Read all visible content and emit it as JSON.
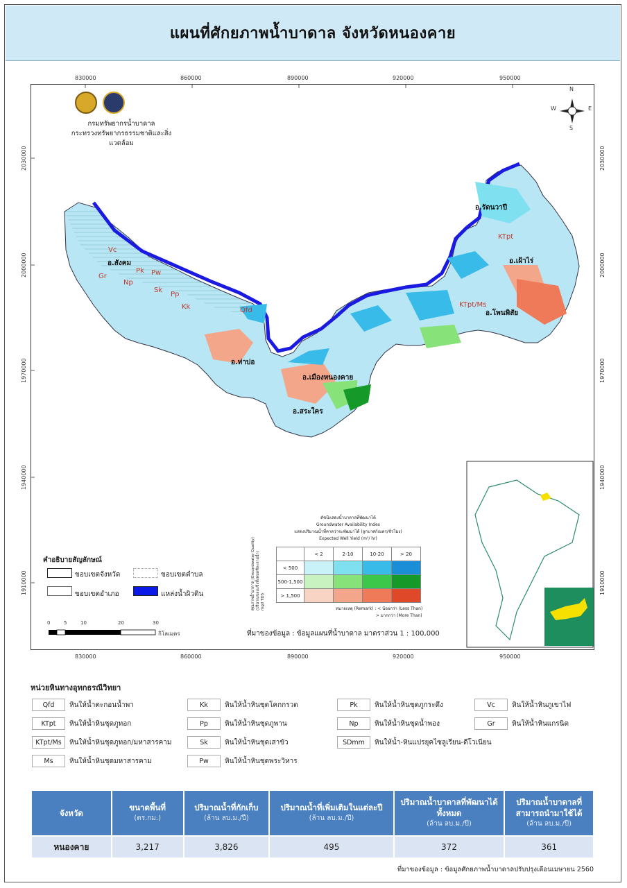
{
  "title": "แผนที่ศักยภาพน้ำบาดาล จังหวัดหนองคาย",
  "grid": {
    "x_ticks": [
      "830000",
      "860000",
      "890000",
      "920000",
      "950000"
    ],
    "y_ticks": [
      "2030000",
      "2000000",
      "1970000",
      "1940000",
      "1910000"
    ]
  },
  "agency": {
    "line1": "กรมทรัพยากรน้ำบาดาล",
    "line2": "กระทรวงทรัพยากรธรรมชาติและสิ่งแวดล้อม"
  },
  "north_arrow": {
    "n": "N",
    "s": "S",
    "e": "E",
    "w": "W"
  },
  "districts": [
    {
      "name": "อ.สังคม"
    },
    {
      "name": "อ.ท่าบ่อ"
    },
    {
      "name": "อ.เมืองหนองคาย"
    },
    {
      "name": "อ.สระใคร"
    },
    {
      "name": "อ.รัตนวาปี"
    },
    {
      "name": "อ.เฝ้าไร่"
    },
    {
      "name": "อ.โพนพิสัย"
    }
  ],
  "geology_labels": [
    "Vc",
    "Gr",
    "Pk",
    "Pw",
    "Np",
    "Sk",
    "Pp",
    "Kk",
    "Qfd",
    "KTpt",
    "KTpt/Ms"
  ],
  "symbol_legend": {
    "title": "คำอธิบายสัญลักษณ์",
    "items": [
      {
        "label": "ขอบเขตจังหวัด"
      },
      {
        "label": "ขอบเขตตำบล"
      },
      {
        "label": "ขอบเขตอำเภอ"
      },
      {
        "label": "แหล่งน้ำผิวดิน"
      }
    ]
  },
  "scale_bar": {
    "ticks": [
      "0",
      "5",
      "10",
      "20",
      "30"
    ],
    "unit": "กิโลเมตร"
  },
  "gw_index": {
    "title_th": "ดัชนีแสดงน้ำบาดาลที่พัฒนาได้",
    "title_en": "Groundwater Availability Index",
    "subtitle": "แสดงปริมาณน้ำที่คาดว่าจะพัฒนาได้ (ลูกบาศก์เมตร/ชั่วโมง)",
    "yield_label": "Expected Well Yield (m³/ hr)",
    "col_headers": [
      "< 2",
      "2-10",
      "10-20",
      "> 20"
    ],
    "row_headers": [
      "< 500",
      "500-1,500",
      "> 1,500"
    ],
    "quality_label": "คุณภาพน้ำบาดาล (Groundwater Quality)",
    "quality_sub": "(ปริมาณของแข็งทั้งหมดที่ละลายน้ำ)",
    "tds": "mg/l TDS",
    "remark1": "หมายเหตุ (Remark) : < น้อยกว่า (Less Than)",
    "remark2": "> มากกว่า (More Than)",
    "colors": [
      [
        "#c8f2f8",
        "#7fe0f0",
        "#38bbe8",
        "#1a8fd8"
      ],
      [
        "#c8f2c0",
        "#88e27a",
        "#3cc64a",
        "#159a2a"
      ],
      [
        "#f8d4c4",
        "#f4a68a",
        "#ef7a5a",
        "#e0482a"
      ]
    ]
  },
  "map_source": "ที่มาของข้อมูล : ข้อมูลแผนที่น้ำบาดาล มาตราส่วน 1 : 100,000",
  "lithology": {
    "title": "หน่วยหินทางอุทกธรณีวิทยา",
    "items": [
      {
        "code": "Qfd",
        "label": "หินให้น้ำตะกอนน้ำพา"
      },
      {
        "code": "Kk",
        "label": "หินให้น้ำหินชุดโคกกรวด"
      },
      {
        "code": "Pk",
        "label": "หินให้น้ำหินชุดภูกระดึง"
      },
      {
        "code": "Vc",
        "label": "หินให้น้ำหินภูเขาไฟ"
      },
      {
        "code": "KTpt",
        "label": "หินให้น้ำหินชุดภูทอก"
      },
      {
        "code": "Pp",
        "label": "หินให้น้ำหินชุดภูพาน"
      },
      {
        "code": "Np",
        "label": "หินให้น้ำหินชุดน้ำพอง"
      },
      {
        "code": "Gr",
        "label": "หินให้น้ำหินแกรนิต"
      },
      {
        "code": "KTpt/Ms",
        "label": "หินให้น้ำหินชุดภูทอก/มหาสารคาม"
      },
      {
        "code": "Sk",
        "label": "หินให้น้ำหินชุดเสาขัว"
      },
      {
        "code": "SDmm",
        "label": "หินให้น้ำ-หินแปรยุคไซลูเรียน-ดีโวเนียน"
      },
      {
        "code": "Ms",
        "label": "หินให้น้ำหินชุดมหาสารคาม"
      },
      {
        "code": "Pw",
        "label": "หินให้น้ำหินชุดพระวิหาร"
      }
    ]
  },
  "summary_table": {
    "headers": [
      {
        "label": "จังหวัด",
        "unit": ""
      },
      {
        "label": "ขนาดพื้นที่",
        "unit": "(ตร.กม.)"
      },
      {
        "label": "ปริมาณน้ำที่กักเก็บ",
        "unit": "(ล้าน ลบ.ม./ปี)"
      },
      {
        "label": "ปริมาณน้ำที่เพิ่มเติมในแต่ละปี",
        "unit": "(ล้าน ลบ.ม./ปี)"
      },
      {
        "label": "ปริมาณน้ำบาดาลที่พัฒนาได้ ทั้งหมด",
        "unit": "(ล้าน ลบ.ม./ปี)"
      },
      {
        "label": "ปริมาณน้ำบาดาลที่ สามารถนำมาใช้ได้",
        "unit": "(ล้าน ลบ.ม./ปี)"
      }
    ],
    "row": [
      "หนองคาย",
      "3,217",
      "3,826",
      "495",
      "372",
      "361"
    ]
  },
  "footnote": "ที่มาของข้อมูล : ข้อมูลศักยภาพน้ำบาดาลปรับปรุงเดือนเมษายน 2560"
}
